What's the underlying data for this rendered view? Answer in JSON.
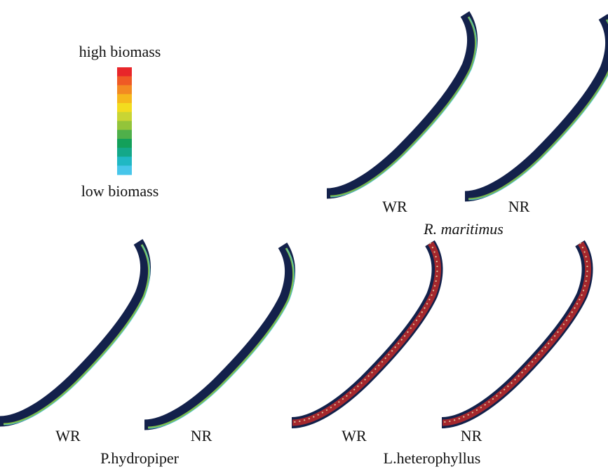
{
  "legend": {
    "high_label": "high biomass",
    "low_label": "low biomass",
    "colors": [
      "#e8262a",
      "#ef5a25",
      "#f38a22",
      "#f6b81c",
      "#f3dc1f",
      "#c9d534",
      "#93c43a",
      "#4fb04a",
      "#13a05a",
      "#14a889",
      "#20b8c4",
      "#47c6ea"
    ]
  },
  "river_colors": {
    "channel": "#13214b",
    "low_band": "#8ccf4e",
    "edge": "#47c6ea",
    "high_band": "#b5282a",
    "high_fleck": "#e3d3a6"
  },
  "species": [
    {
      "name": "R. maritimus",
      "italic": true,
      "wr_label": "WR",
      "nr_label": "NR",
      "biomass_level": "low"
    },
    {
      "name": "P.hydropiper",
      "italic": false,
      "wr_label": "WR",
      "nr_label": "NR",
      "biomass_level": "low"
    },
    {
      "name": "L.heterophyllus",
      "italic": false,
      "wr_label": "WR",
      "nr_label": "NR",
      "biomass_level": "high"
    }
  ]
}
